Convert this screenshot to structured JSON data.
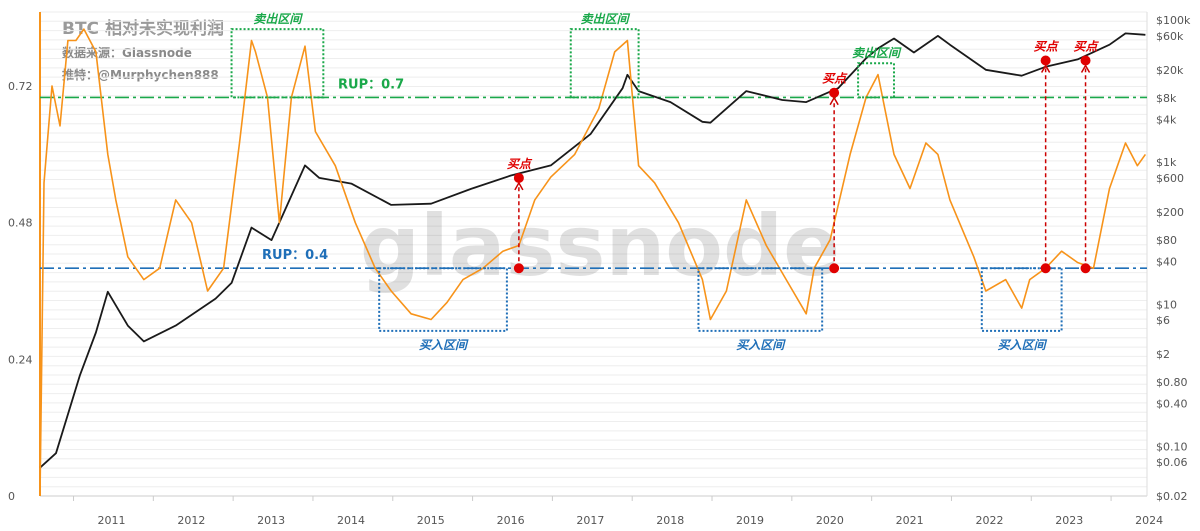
{
  "header": {
    "title": "BTC 相对未实现利润",
    "source": "数据来源：Glassnode",
    "author": "推特：@Murphychen888"
  },
  "chart_data": {
    "type": "line",
    "watermark": "glassnode",
    "x_ticks": [
      "2011",
      "2012",
      "2013",
      "2014",
      "2015",
      "2016",
      "2017",
      "2018",
      "2019",
      "2020",
      "2021",
      "2022",
      "2023",
      "2024"
    ],
    "y_left_ticks": [
      "0",
      "0.24",
      "0.48",
      "0.72"
    ],
    "y_right_ticks": [
      "$100k",
      "$60k",
      "$20k",
      "$8k",
      "$4k",
      "$1k",
      "$600",
      "$200",
      "$80",
      "$40",
      "$10",
      "$6",
      "$2",
      "$0.80",
      "$0.40",
      "$0.10",
      "$0.06",
      "$0.02"
    ],
    "ylim_left": [
      0,
      0.85
    ],
    "series": [
      {
        "name": "RUP",
        "color": "#f7931a",
        "axis": "left",
        "x": [
          2010.6,
          2010.65,
          2010.75,
          2010.85,
          2010.95,
          2011.05,
          2011.15,
          2011.3,
          2011.45,
          2011.55,
          2011.7,
          2011.9,
          2012.1,
          2012.3,
          2012.5,
          2012.7,
          2012.9,
          2013.1,
          2013.25,
          2013.3,
          2013.45,
          2013.6,
          2013.75,
          2013.92,
          2014.05,
          2014.3,
          2014.55,
          2014.8,
          2015.0,
          2015.25,
          2015.5,
          2015.7,
          2015.9,
          2016.15,
          2016.4,
          2016.6,
          2016.8,
          2017.0,
          2017.3,
          2017.6,
          2017.8,
          2017.96,
          2018.1,
          2018.3,
          2018.6,
          2018.9,
          2019.0,
          2019.2,
          2019.45,
          2019.7,
          2019.95,
          2020.2,
          2020.3,
          2020.5,
          2020.75,
          2020.95,
          2021.1,
          2021.3,
          2021.5,
          2021.7,
          2021.85,
          2022.0,
          2022.3,
          2022.45,
          2022.7,
          2022.9,
          2023.0,
          2023.2,
          2023.4,
          2023.6,
          2023.8,
          2024.0,
          2024.2,
          2024.35,
          2024.45
        ],
        "y": [
          0.0,
          0.55,
          0.72,
          0.65,
          0.8,
          0.8,
          0.82,
          0.78,
          0.6,
          0.52,
          0.42,
          0.38,
          0.4,
          0.52,
          0.48,
          0.36,
          0.4,
          0.62,
          0.8,
          0.78,
          0.7,
          0.48,
          0.7,
          0.79,
          0.64,
          0.58,
          0.48,
          0.4,
          0.36,
          0.32,
          0.31,
          0.34,
          0.38,
          0.4,
          0.43,
          0.44,
          0.52,
          0.56,
          0.6,
          0.68,
          0.78,
          0.8,
          0.58,
          0.55,
          0.48,
          0.38,
          0.31,
          0.36,
          0.52,
          0.44,
          0.38,
          0.32,
          0.4,
          0.45,
          0.6,
          0.7,
          0.74,
          0.6,
          0.54,
          0.62,
          0.6,
          0.52,
          0.42,
          0.36,
          0.38,
          0.33,
          0.38,
          0.4,
          0.43,
          0.41,
          0.4,
          0.54,
          0.62,
          0.58,
          0.6
        ]
      },
      {
        "name": "BTC Price",
        "color": "#1a1a1a",
        "axis": "right",
        "x": [
          2010.6,
          2010.8,
          2011.1,
          2011.3,
          2011.45,
          2011.7,
          2011.9,
          2012.3,
          2012.8,
          2013.0,
          2013.25,
          2013.5,
          2013.92,
          2014.1,
          2014.5,
          2015.0,
          2015.5,
          2016.0,
          2016.5,
          2017.0,
          2017.5,
          2017.9,
          2017.96,
          2018.1,
          2018.5,
          2018.9,
          2019.0,
          2019.45,
          2019.9,
          2020.2,
          2020.6,
          2020.95,
          2021.1,
          2021.3,
          2021.55,
          2021.85,
          2022.0,
          2022.45,
          2022.9,
          2023.2,
          2023.6,
          2024.0,
          2024.2,
          2024.45
        ],
        "y": [
          0.05,
          0.08,
          1.0,
          4.0,
          15,
          5,
          3,
          5,
          12,
          20,
          120,
          80,
          900,
          600,
          500,
          250,
          260,
          420,
          650,
          900,
          2500,
          11000,
          17000,
          10000,
          7000,
          3700,
          3600,
          10000,
          7500,
          7000,
          11000,
          29000,
          40000,
          55000,
          35000,
          60000,
          45000,
          20000,
          16500,
          22000,
          28000,
          45000,
          65000,
          62000
        ]
      }
    ],
    "thresholds": [
      {
        "label": "RUP：0.7",
        "value": 0.7,
        "color": "#1aa84a"
      },
      {
        "label": "RUP：0.4",
        "value": 0.4,
        "color": "#1f6fb8"
      }
    ],
    "sell_zones": [
      {
        "label": "卖出区间",
        "x0": 2013.0,
        "x1": 2014.15,
        "y0": 0.7,
        "y1": 0.82
      },
      {
        "label": "卖出区间",
        "x0": 2017.25,
        "x1": 2018.1,
        "y0": 0.7,
        "y1": 0.82
      },
      {
        "label": "卖出区间",
        "x0": 2020.85,
        "x1": 2021.3,
        "y0": 0.7,
        "y1": 0.76
      }
    ],
    "buy_zones": [
      {
        "label": "买入区间",
        "x0": 2014.85,
        "x1": 2016.45,
        "y0": 0.29,
        "y1": 0.4
      },
      {
        "label": "买入区间",
        "x0": 2018.85,
        "x1": 2020.4,
        "y0": 0.29,
        "y1": 0.4
      },
      {
        "label": "买入区间",
        "x0": 2022.4,
        "x1": 2023.4,
        "y0": 0.29,
        "y1": 0.4
      }
    ],
    "buy_points": [
      {
        "label": "买点",
        "x": 2016.6,
        "price": 600
      },
      {
        "label": "买点",
        "x": 2020.55,
        "price": 9500
      },
      {
        "label": "买点",
        "x": 2023.2,
        "price": 27000
      },
      {
        "label": "买点",
        "x": 2023.7,
        "price": 27000
      }
    ]
  }
}
